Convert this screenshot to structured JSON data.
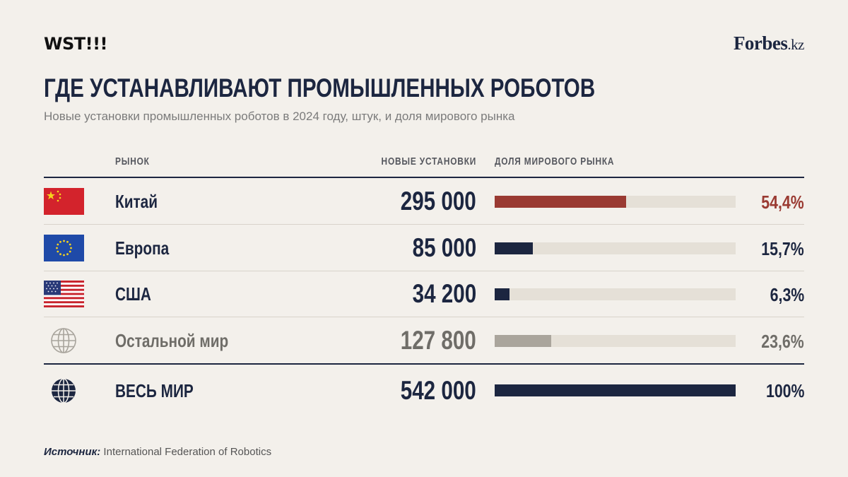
{
  "header": {
    "brand": "WST!!!",
    "logo_main": "Forbes",
    "logo_suffix": ".kz",
    "title": "ГДЕ УСТАНАВЛИВАЮТ ПРОМЫШЛЕННЫХ РОБОТОВ",
    "subtitle": "Новые установки промышленных роботов в 2024 году, штук, и доля мирового рынка"
  },
  "columns": {
    "market": "РЫНОК",
    "installations": "НОВЫЕ УСТАНОВКИ",
    "share": "ДОЛЯ МИРОВОГО РЫНКА"
  },
  "rows": [
    {
      "name": "Китай",
      "installations": "295 000",
      "share_label": "54,4%",
      "icon": "china-flag"
    },
    {
      "name": "Европа",
      "installations": "85 000",
      "share_label": "15,7%",
      "icon": "eu-flag"
    },
    {
      "name": "США",
      "installations": "34 200",
      "share_label": "6,3%",
      "icon": "usa-flag"
    },
    {
      "name": "Остальной мир",
      "installations": "127 800",
      "share_label": "23,6%",
      "icon": "globe-outline-icon"
    }
  ],
  "total": {
    "name": "ВЕСЬ МИР",
    "installations": "542 000",
    "share_label": "100%",
    "icon": "globe-solid-icon"
  },
  "source": {
    "label": "Источник:",
    "text": " International Federation of Robotics"
  },
  "colors": {
    "navy": "#1c2640",
    "china": "#9a3a32",
    "rest_of_world": "#aaa59c",
    "track": "#e5e0d7",
    "background": "#f3f0eb"
  },
  "chart_data": {
    "type": "bar",
    "categories": [
      "Китай",
      "Европа",
      "США",
      "Остальной мир",
      "ВЕСЬ МИР"
    ],
    "series": [
      {
        "name": "НОВЫЕ УСТАНОВКИ",
        "values": [
          295000,
          85000,
          34200,
          127800,
          542000
        ]
      },
      {
        "name": "ДОЛЯ МИРОВОГО РЫНКА",
        "values": [
          54.4,
          15.7,
          6.3,
          23.6,
          100
        ]
      }
    ],
    "title": "ГДЕ УСТАНАВЛИВАЮТ ПРОМЫШЛЕННЫХ РОБОТОВ",
    "xlabel": "",
    "ylabel": "",
    "ylim": [
      0,
      100
    ]
  }
}
